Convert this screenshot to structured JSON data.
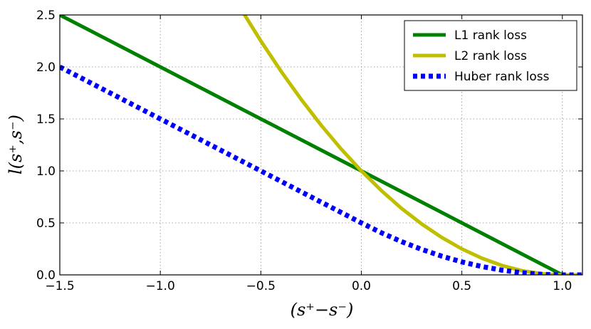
{
  "chart_data": {
    "type": "line",
    "title": "",
    "xlabel": "(s⁺−s⁻)",
    "ylabel": "l(s⁺,s⁻)",
    "xlim": [
      -1.5,
      1.1
    ],
    "ylim": [
      0.0,
      2.5
    ],
    "xticks": [
      -1.5,
      -1.0,
      -0.5,
      0.0,
      0.5,
      1.0
    ],
    "xtick_labels": [
      "−1.5",
      "−1.0",
      "−0.5",
      "0.0",
      "0.5",
      "1.0"
    ],
    "yticks": [
      0.0,
      0.5,
      1.0,
      1.5,
      2.0,
      2.5
    ],
    "ytick_labels": [
      "0.0",
      "0.5",
      "1.0",
      "1.5",
      "2.0",
      "2.5"
    ],
    "grid": true,
    "legend_position": "top-right",
    "series": [
      {
        "name": "L1 rank loss",
        "color": "#008000",
        "style": "solid",
        "x": [
          -1.5,
          -1.0,
          -0.5,
          0.0,
          0.5,
          1.0,
          1.1
        ],
        "y": [
          2.5,
          2.0,
          1.5,
          1.0,
          0.5,
          0.0,
          0.0
        ]
      },
      {
        "name": "L2 rank loss",
        "color": "#bfbf00",
        "style": "solid",
        "x": [
          -0.6,
          -0.5,
          -0.4,
          -0.3,
          -0.2,
          -0.1,
          0.0,
          0.1,
          0.2,
          0.3,
          0.4,
          0.5,
          0.6,
          0.7,
          0.8,
          0.9,
          1.0,
          1.1
        ],
        "y": [
          2.56,
          2.25,
          1.96,
          1.69,
          1.44,
          1.21,
          1.0,
          0.81,
          0.64,
          0.49,
          0.36,
          0.25,
          0.16,
          0.09,
          0.04,
          0.01,
          0.0,
          0.0
        ]
      },
      {
        "name": "Huber rank loss",
        "color": "#0000ff",
        "style": "dotted",
        "x": [
          -1.5,
          -1.0,
          -0.5,
          0.0,
          0.1,
          0.2,
          0.3,
          0.4,
          0.5,
          0.6,
          0.7,
          0.8,
          0.9,
          1.0,
          1.1
        ],
        "y": [
          2.0,
          1.5,
          1.0,
          0.5,
          0.405,
          0.32,
          0.245,
          0.18,
          0.125,
          0.08,
          0.045,
          0.02,
          0.005,
          0.0,
          0.0
        ]
      }
    ]
  }
}
